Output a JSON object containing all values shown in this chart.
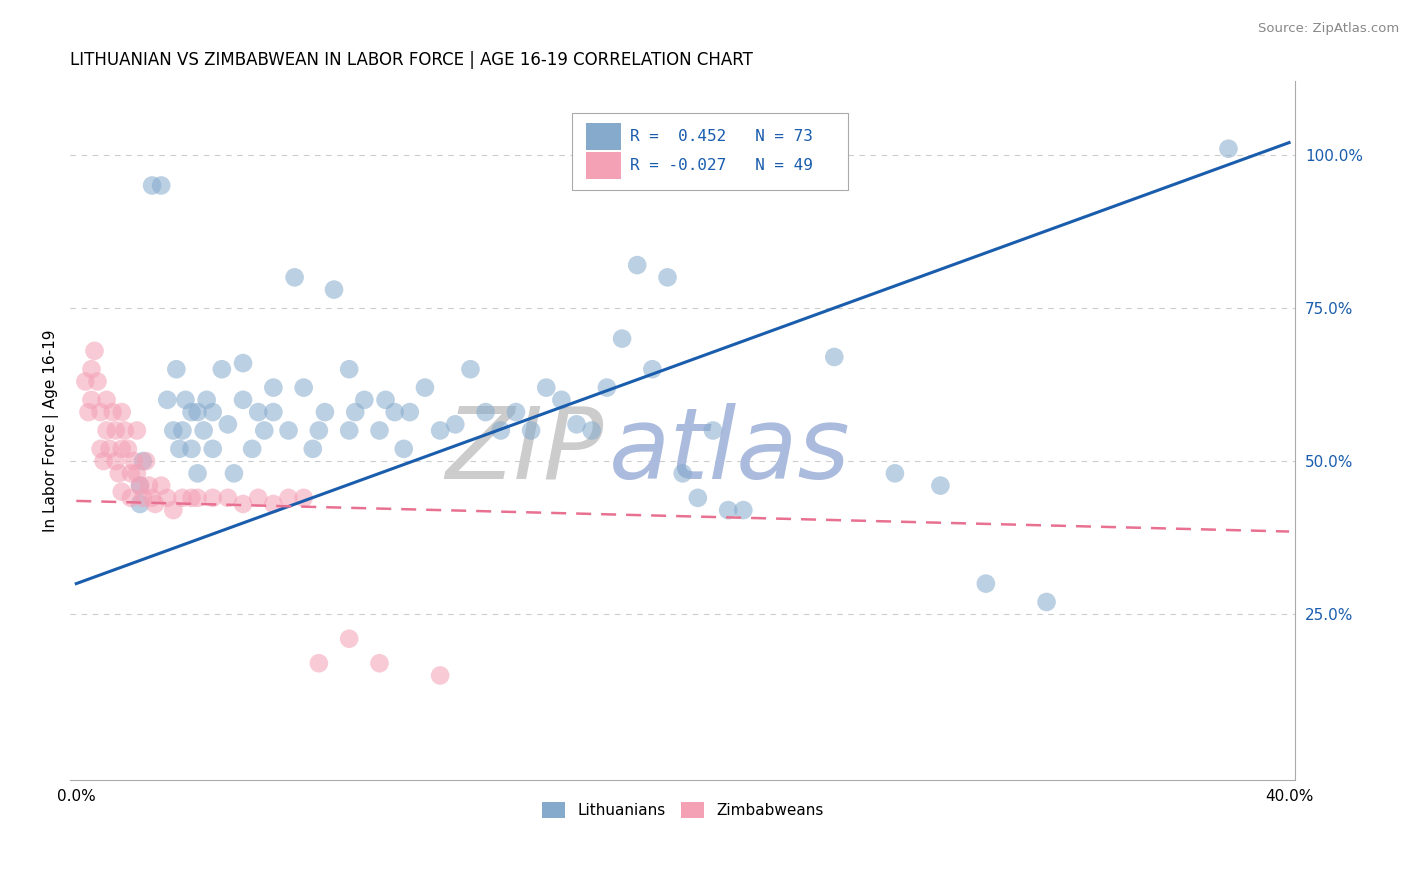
{
  "title": "LITHUANIAN VS ZIMBABWEAN IN LABOR FORCE | AGE 16-19 CORRELATION CHART",
  "source": "Source: ZipAtlas.com",
  "ylabel": "In Labor Force | Age 16-19",
  "xlim": [
    -0.002,
    0.402
  ],
  "ylim": [
    -0.02,
    1.12
  ],
  "yticks_right": [
    0.25,
    0.5,
    0.75,
    1.0
  ],
  "ytick_labels_right": [
    "25.0%",
    "50.0%",
    "75.0%",
    "100.0%"
  ],
  "blue_color": "#85AACC",
  "pink_color": "#F4A0B5",
  "blue_line_color": "#1A5DAD",
  "pink_line_color": "#E87090",
  "legend_R_blue": "R =  0.452",
  "legend_N_blue": "N = 73",
  "legend_R_pink": "R = -0.027",
  "legend_N_pink": "N = 49",
  "watermark_zip": "ZIP",
  "watermark_atlas": "atlas",
  "watermark_zip_color": "#CCCCCC",
  "watermark_atlas_color": "#AABBDD",
  "blue_line_x0": 0.0,
  "blue_line_y0": 0.3,
  "blue_line_x1": 0.4,
  "blue_line_y1": 1.02,
  "pink_line_x0": 0.0,
  "pink_line_y0": 0.435,
  "pink_line_x1": 0.4,
  "pink_line_y1": 0.385,
  "blue_scatter_x": [
    0.021,
    0.021,
    0.022,
    0.025,
    0.028,
    0.03,
    0.032,
    0.033,
    0.034,
    0.035,
    0.036,
    0.038,
    0.038,
    0.04,
    0.04,
    0.042,
    0.043,
    0.045,
    0.045,
    0.048,
    0.05,
    0.052,
    0.055,
    0.055,
    0.058,
    0.06,
    0.062,
    0.065,
    0.065,
    0.07,
    0.072,
    0.075,
    0.078,
    0.08,
    0.082,
    0.085,
    0.09,
    0.09,
    0.092,
    0.095,
    0.1,
    0.102,
    0.105,
    0.108,
    0.11,
    0.115,
    0.12,
    0.125,
    0.13,
    0.135,
    0.14,
    0.145,
    0.15,
    0.155,
    0.16,
    0.165,
    0.17,
    0.175,
    0.18,
    0.19,
    0.2,
    0.205,
    0.21,
    0.215,
    0.22,
    0.25,
    0.27,
    0.285,
    0.3,
    0.32,
    0.185,
    0.195,
    0.38
  ],
  "blue_scatter_y": [
    0.43,
    0.46,
    0.5,
    0.95,
    0.95,
    0.6,
    0.55,
    0.65,
    0.52,
    0.55,
    0.6,
    0.58,
    0.52,
    0.48,
    0.58,
    0.55,
    0.6,
    0.52,
    0.58,
    0.65,
    0.56,
    0.48,
    0.6,
    0.66,
    0.52,
    0.58,
    0.55,
    0.62,
    0.58,
    0.55,
    0.8,
    0.62,
    0.52,
    0.55,
    0.58,
    0.78,
    0.55,
    0.65,
    0.58,
    0.6,
    0.55,
    0.6,
    0.58,
    0.52,
    0.58,
    0.62,
    0.55,
    0.56,
    0.65,
    0.58,
    0.55,
    0.58,
    0.55,
    0.62,
    0.6,
    0.56,
    0.55,
    0.62,
    0.7,
    0.65,
    0.48,
    0.44,
    0.55,
    0.42,
    0.42,
    0.67,
    0.48,
    0.46,
    0.3,
    0.27,
    0.82,
    0.8,
    1.01
  ],
  "pink_scatter_x": [
    0.003,
    0.004,
    0.005,
    0.005,
    0.006,
    0.007,
    0.008,
    0.008,
    0.009,
    0.01,
    0.01,
    0.011,
    0.012,
    0.013,
    0.013,
    0.014,
    0.015,
    0.015,
    0.015,
    0.016,
    0.017,
    0.018,
    0.018,
    0.019,
    0.02,
    0.02,
    0.021,
    0.022,
    0.023,
    0.024,
    0.025,
    0.026,
    0.028,
    0.03,
    0.032,
    0.035,
    0.038,
    0.04,
    0.045,
    0.05,
    0.055,
    0.06,
    0.065,
    0.07,
    0.075,
    0.08,
    0.09,
    0.1,
    0.12
  ],
  "pink_scatter_y": [
    0.63,
    0.58,
    0.65,
    0.6,
    0.68,
    0.63,
    0.58,
    0.52,
    0.5,
    0.6,
    0.55,
    0.52,
    0.58,
    0.55,
    0.5,
    0.48,
    0.58,
    0.52,
    0.45,
    0.55,
    0.52,
    0.48,
    0.44,
    0.5,
    0.55,
    0.48,
    0.46,
    0.44,
    0.5,
    0.46,
    0.44,
    0.43,
    0.46,
    0.44,
    0.42,
    0.44,
    0.44,
    0.44,
    0.44,
    0.44,
    0.43,
    0.44,
    0.43,
    0.44,
    0.44,
    0.17,
    0.21,
    0.17,
    0.15
  ]
}
